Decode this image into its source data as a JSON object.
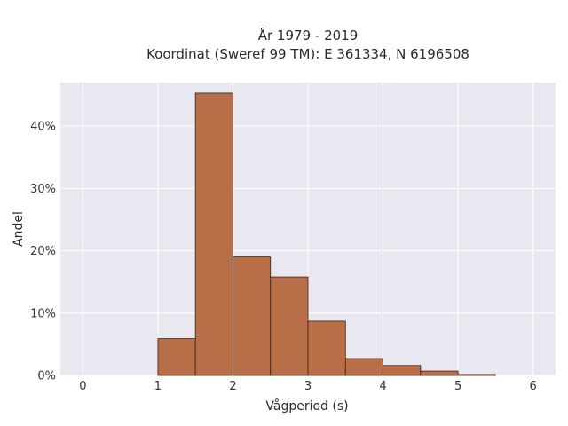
{
  "chart_data": {
    "type": "bar",
    "title_lines": [
      "År 1979 - 2019",
      "Koordinat (Sweref 99 TM): E 361334, N 6196508"
    ],
    "xlabel": "Vågperiod (s)",
    "ylabel": "Andel",
    "xlim": [
      -0.3,
      6.3
    ],
    "ylim": [
      0,
      47
    ],
    "x_ticks": [
      0,
      1,
      2,
      3,
      4,
      5,
      6
    ],
    "x_tick_labels": [
      "0",
      "1",
      "2",
      "3",
      "4",
      "5",
      "6"
    ],
    "y_ticks": [
      0,
      10,
      20,
      30,
      40
    ],
    "y_tick_labels": [
      "0%",
      "10%",
      "20%",
      "30%",
      "40%"
    ],
    "grid": true,
    "bins": [
      {
        "x0": 1.0,
        "x1": 1.5,
        "value": 5.9
      },
      {
        "x0": 1.5,
        "x1": 2.0,
        "value": 45.3
      },
      {
        "x0": 2.0,
        "x1": 2.5,
        "value": 19.0
      },
      {
        "x0": 2.5,
        "x1": 3.0,
        "value": 15.8
      },
      {
        "x0": 3.0,
        "x1": 3.5,
        "value": 8.7
      },
      {
        "x0": 3.5,
        "x1": 4.0,
        "value": 2.7
      },
      {
        "x0": 4.0,
        "x1": 4.5,
        "value": 1.6
      },
      {
        "x0": 4.5,
        "x1": 5.0,
        "value": 0.7
      },
      {
        "x0": 5.0,
        "x1": 5.5,
        "value": 0.15
      }
    ],
    "colors": {
      "bar_fill": "#b86f48",
      "bar_stroke": "#3a2418",
      "plot_background": "#e8e8f0",
      "grid": "#ffffff"
    }
  }
}
